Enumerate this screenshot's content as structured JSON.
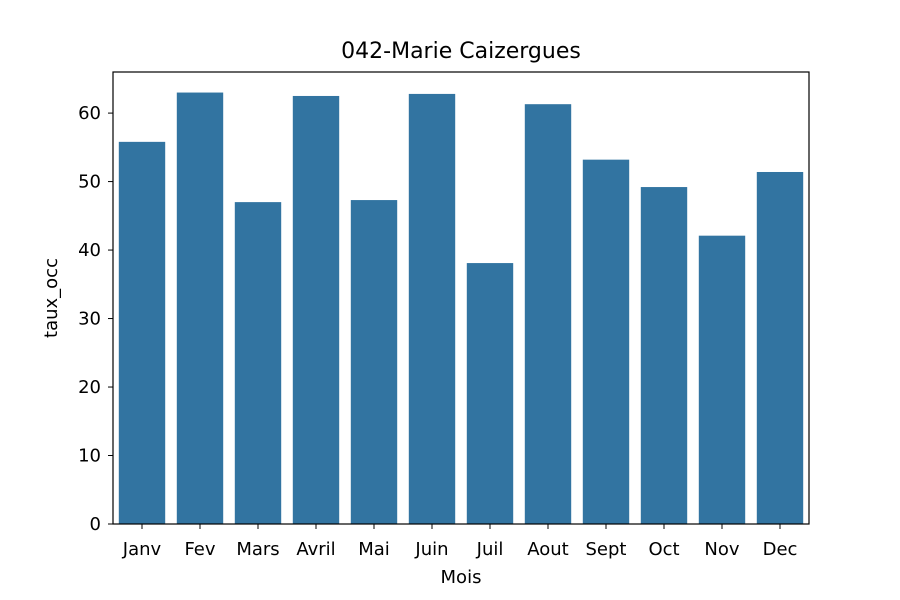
{
  "chart_data": {
    "type": "bar",
    "title": "042-Marie Caizergues",
    "xlabel": "Mois",
    "ylabel": "taux_occ",
    "categories": [
      "Janv",
      "Fev",
      "Mars",
      "Avril",
      "Mai",
      "Juin",
      "Juil",
      "Aout",
      "Sept",
      "Oct",
      "Nov",
      "Dec"
    ],
    "values": [
      55.8,
      63.0,
      47.0,
      62.5,
      47.3,
      62.8,
      38.1,
      61.3,
      53.2,
      49.2,
      42.1,
      51.4
    ],
    "ylim": [
      0,
      66
    ],
    "yticks": [
      0,
      10,
      20,
      30,
      40,
      50,
      60
    ],
    "grid": false,
    "bar_color": "#3274a1"
  }
}
